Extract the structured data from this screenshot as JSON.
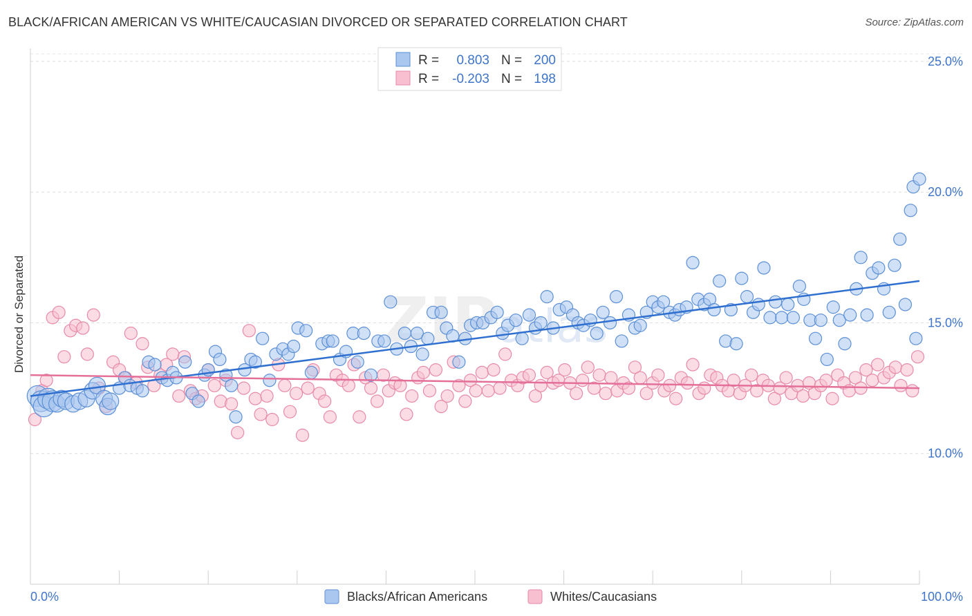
{
  "title": "BLACK/AFRICAN AMERICAN VS WHITE/CAUCASIAN DIVORCED OR SEPARATED CORRELATION CHART",
  "source": "Source: ZipAtlas.com",
  "watermark": {
    "part1": "ZIP",
    "part2": "atlas"
  },
  "colors": {
    "blue_fill": "#a9c7ef",
    "blue_stroke": "#5b8fd6",
    "blue_line": "#2f6fcf",
    "pink_fill": "#f7bfd0",
    "pink_stroke": "#e78aa8",
    "pink_line": "#e4709a",
    "tick_blue": "#3e74c9",
    "grid": "#dcdcdc"
  },
  "legend": {
    "rows": [
      {
        "r_label": "R =",
        "r_value": "0.803",
        "n_label": "N =",
        "n_value": "200"
      },
      {
        "r_label": "R =",
        "r_value": "-0.203",
        "n_label": "N =",
        "n_value": "198"
      }
    ]
  },
  "chart_data": {
    "type": "scatter",
    "title": "BLACK/AFRICAN AMERICAN VS WHITE/CAUCASIAN DIVORCED OR SEPARATED CORRELATION CHART",
    "xlabel": "",
    "ylabel": "Divorced or Separated",
    "xlim": [
      0,
      100
    ],
    "ylim": [
      5,
      25.5
    ],
    "x_tick_labels": [
      "0.0%",
      "100.0%"
    ],
    "y_ticks": [
      10,
      15,
      20,
      25
    ],
    "y_tick_labels": [
      "10.0%",
      "15.0%",
      "20.0%",
      "25.0%"
    ],
    "grid": true,
    "legend_position": "top-center",
    "series": [
      {
        "name": "Blacks/African Americans",
        "r": 0.803,
        "n": 200,
        "trend": {
          "x": [
            0,
            100
          ],
          "y": [
            12.2,
            16.6
          ]
        },
        "points": [
          [
            0.8,
            12.2
          ],
          [
            1.2,
            12.0
          ],
          [
            1.5,
            11.8
          ],
          [
            2,
            12.1
          ],
          [
            2.5,
            12.0
          ],
          [
            3,
            11.9
          ],
          [
            3.5,
            12.1
          ],
          [
            4,
            12.0
          ],
          [
            4.8,
            11.9
          ],
          [
            5.5,
            12.0
          ],
          [
            6.3,
            12.1
          ],
          [
            7,
            12.4
          ],
          [
            7.5,
            12.6
          ],
          [
            8.3,
            12.1
          ],
          [
            8.7,
            11.8
          ],
          [
            9,
            12.0
          ],
          [
            10,
            12.5
          ],
          [
            10.6,
            12.9
          ],
          [
            11.2,
            12.6
          ],
          [
            12,
            12.5
          ],
          [
            12.6,
            12.4
          ],
          [
            13.3,
            13.5
          ],
          [
            14,
            13.4
          ],
          [
            14.8,
            12.9
          ],
          [
            15.4,
            12.8
          ],
          [
            16,
            13.1
          ],
          [
            16.4,
            12.9
          ],
          [
            17.4,
            13.5
          ],
          [
            18.2,
            12.3
          ],
          [
            18.9,
            12.0
          ],
          [
            19.6,
            13.0
          ],
          [
            20,
            13.2
          ],
          [
            20.8,
            13.9
          ],
          [
            21.3,
            13.6
          ],
          [
            22,
            13.0
          ],
          [
            22.6,
            12.6
          ],
          [
            23.1,
            11.4
          ],
          [
            24.1,
            13.2
          ],
          [
            24.8,
            13.6
          ],
          [
            25.3,
            13.5
          ],
          [
            26.1,
            14.4
          ],
          [
            26.9,
            12.8
          ],
          [
            27.6,
            13.8
          ],
          [
            28.4,
            14.0
          ],
          [
            29,
            13.8
          ],
          [
            29.6,
            14.1
          ],
          [
            30.1,
            14.8
          ],
          [
            31,
            14.7
          ],
          [
            31.6,
            13.1
          ],
          [
            32.8,
            14.2
          ],
          [
            33.5,
            14.3
          ],
          [
            34,
            14.3
          ],
          [
            34.8,
            13.6
          ],
          [
            35.5,
            13.9
          ],
          [
            36.3,
            14.6
          ],
          [
            36.8,
            13.5
          ],
          [
            37.5,
            14.6
          ],
          [
            38.3,
            13.0
          ],
          [
            39.1,
            14.3
          ],
          [
            39.8,
            14.3
          ],
          [
            40.5,
            15.8
          ],
          [
            41.2,
            14.0
          ],
          [
            42.1,
            14.6
          ],
          [
            42.8,
            14.1
          ],
          [
            43.5,
            14.6
          ],
          [
            44.1,
            13.8
          ],
          [
            44.7,
            14.4
          ],
          [
            45.3,
            15.4
          ],
          [
            46.2,
            15.4
          ],
          [
            46.8,
            14.8
          ],
          [
            47.5,
            14.5
          ],
          [
            48.2,
            13.5
          ],
          [
            48.9,
            14.4
          ],
          [
            49.5,
            14.9
          ],
          [
            50.2,
            15.0
          ],
          [
            50.9,
            15.0
          ],
          [
            51.8,
            15.2
          ],
          [
            52.5,
            15.4
          ],
          [
            53.1,
            14.6
          ],
          [
            53.7,
            14.9
          ],
          [
            54.6,
            15.1
          ],
          [
            55.3,
            14.4
          ],
          [
            56.1,
            15.3
          ],
          [
            56.8,
            14.8
          ],
          [
            57.4,
            15.0
          ],
          [
            58.1,
            16.0
          ],
          [
            58.8,
            14.8
          ],
          [
            59.5,
            15.5
          ],
          [
            60.3,
            15.6
          ],
          [
            61,
            15.3
          ],
          [
            61.6,
            15.0
          ],
          [
            62.2,
            14.9
          ],
          [
            63,
            15.1
          ],
          [
            63.7,
            14.6
          ],
          [
            64.4,
            15.4
          ],
          [
            65.2,
            15.0
          ],
          [
            65.9,
            16.0
          ],
          [
            66.5,
            14.3
          ],
          [
            67.3,
            15.3
          ],
          [
            68,
            14.8
          ],
          [
            68.6,
            14.9
          ],
          [
            69.3,
            15.4
          ],
          [
            70,
            15.8
          ],
          [
            70.6,
            15.6
          ],
          [
            71.2,
            15.8
          ],
          [
            71.9,
            15.4
          ],
          [
            72.5,
            15.3
          ],
          [
            73,
            15.5
          ],
          [
            73.8,
            15.6
          ],
          [
            74.5,
            17.3
          ],
          [
            75.1,
            15.9
          ],
          [
            75.8,
            15.7
          ],
          [
            76.4,
            15.9
          ],
          [
            76.9,
            15.5
          ],
          [
            77.5,
            16.6
          ],
          [
            78.2,
            14.3
          ],
          [
            78.8,
            15.5
          ],
          [
            79.4,
            14.2
          ],
          [
            80,
            16.7
          ],
          [
            80.6,
            16.0
          ],
          [
            81.3,
            15.4
          ],
          [
            81.9,
            15.7
          ],
          [
            82.5,
            17.1
          ],
          [
            83.2,
            15.2
          ],
          [
            83.8,
            15.8
          ],
          [
            84.5,
            15.2
          ],
          [
            85.2,
            15.7
          ],
          [
            85.8,
            15.2
          ],
          [
            86.5,
            16.4
          ],
          [
            87,
            15.9
          ],
          [
            87.7,
            15.1
          ],
          [
            88.3,
            14.4
          ],
          [
            88.9,
            15.1
          ],
          [
            89.6,
            13.6
          ],
          [
            90.3,
            15.6
          ],
          [
            91,
            15.1
          ],
          [
            91.6,
            14.2
          ],
          [
            92.2,
            15.3
          ],
          [
            92.9,
            16.3
          ],
          [
            93.4,
            17.5
          ],
          [
            94.1,
            15.3
          ],
          [
            94.7,
            16.9
          ],
          [
            95.4,
            17.1
          ],
          [
            96,
            16.3
          ],
          [
            96.6,
            15.4
          ],
          [
            97.2,
            17.2
          ],
          [
            97.8,
            18.2
          ],
          [
            98.4,
            15.7
          ],
          [
            99,
            19.3
          ],
          [
            99.3,
            20.2
          ],
          [
            99.6,
            14.4
          ],
          [
            100,
            20.5
          ]
        ]
      },
      {
        "name": "Whites/Caucasians",
        "r": -0.203,
        "n": 198,
        "trend": {
          "x": [
            0,
            100
          ],
          "y": [
            13.0,
            12.5
          ]
        },
        "points": [
          [
            0.5,
            11.3
          ],
          [
            1.3,
            12.4
          ],
          [
            1.8,
            12.8
          ],
          [
            2.5,
            15.2
          ],
          [
            3.2,
            15.4
          ],
          [
            3.8,
            13.7
          ],
          [
            4.5,
            14.7
          ],
          [
            5.1,
            14.9
          ],
          [
            5.9,
            14.8
          ],
          [
            6.4,
            13.8
          ],
          [
            7.1,
            15.3
          ],
          [
            7.7,
            12.5
          ],
          [
            8.5,
            11.8
          ],
          [
            9.3,
            13.5
          ],
          [
            10,
            13.2
          ],
          [
            10.7,
            12.9
          ],
          [
            11.3,
            14.6
          ],
          [
            11.9,
            12.7
          ],
          [
            12.6,
            14.2
          ],
          [
            13.2,
            13.3
          ],
          [
            13.9,
            12.6
          ],
          [
            14.6,
            13.0
          ],
          [
            15.3,
            13.4
          ],
          [
            16,
            13.8
          ],
          [
            16.7,
            12.2
          ],
          [
            17.3,
            13.7
          ],
          [
            18,
            12.4
          ],
          [
            18.6,
            12.1
          ],
          [
            19.3,
            12.2
          ],
          [
            20,
            13.2
          ],
          [
            20.7,
            12.6
          ],
          [
            21.4,
            12.0
          ],
          [
            22,
            12.8
          ],
          [
            22.6,
            11.9
          ],
          [
            23.3,
            10.8
          ],
          [
            24,
            12.5
          ],
          [
            24.6,
            14.7
          ],
          [
            25.3,
            12.1
          ],
          [
            25.9,
            11.5
          ],
          [
            26.6,
            12.2
          ],
          [
            27.2,
            11.3
          ],
          [
            27.9,
            13.4
          ],
          [
            28.6,
            12.6
          ],
          [
            29.2,
            11.6
          ],
          [
            29.9,
            12.3
          ],
          [
            30.6,
            10.7
          ],
          [
            31.2,
            12.5
          ],
          [
            31.8,
            13.2
          ],
          [
            32.5,
            12.3
          ],
          [
            33.1,
            12.0
          ],
          [
            33.7,
            11.4
          ],
          [
            34.4,
            13.0
          ],
          [
            35.1,
            12.8
          ],
          [
            35.8,
            12.6
          ],
          [
            36.4,
            13.4
          ],
          [
            37,
            11.4
          ],
          [
            37.7,
            12.9
          ],
          [
            38.3,
            12.5
          ],
          [
            39,
            12.0
          ],
          [
            39.7,
            13.0
          ],
          [
            40.3,
            12.4
          ],
          [
            41,
            12.7
          ],
          [
            41.6,
            12.6
          ],
          [
            42.3,
            11.5
          ],
          [
            42.9,
            12.2
          ],
          [
            43.6,
            12.9
          ],
          [
            44.2,
            13.1
          ],
          [
            44.9,
            12.4
          ],
          [
            45.6,
            13.2
          ],
          [
            46.2,
            11.8
          ],
          [
            46.9,
            12.2
          ],
          [
            47.6,
            13.5
          ],
          [
            48.2,
            12.6
          ],
          [
            48.9,
            12.0
          ],
          [
            49.5,
            12.8
          ],
          [
            50.1,
            12.4
          ],
          [
            50.8,
            13.1
          ],
          [
            51.5,
            12.4
          ],
          [
            52.1,
            13.2
          ],
          [
            52.8,
            12.5
          ],
          [
            53.4,
            13.8
          ],
          [
            54.1,
            12.8
          ],
          [
            54.8,
            12.6
          ],
          [
            55.4,
            12.9
          ],
          [
            56.1,
            13.0
          ],
          [
            56.8,
            12.2
          ],
          [
            57.4,
            12.6
          ],
          [
            58.1,
            13.1
          ],
          [
            58.8,
            12.7
          ],
          [
            59.4,
            12.8
          ],
          [
            60.1,
            13.2
          ],
          [
            60.7,
            12.7
          ],
          [
            61.4,
            12.3
          ],
          [
            62.1,
            12.8
          ],
          [
            62.7,
            13.3
          ],
          [
            63.4,
            12.5
          ],
          [
            64,
            13.0
          ],
          [
            64.7,
            12.3
          ],
          [
            65.3,
            12.9
          ],
          [
            66,
            12.4
          ],
          [
            66.7,
            12.7
          ],
          [
            67.3,
            12.5
          ],
          [
            68,
            13.3
          ],
          [
            68.6,
            12.9
          ],
          [
            69.3,
            12.3
          ],
          [
            70,
            12.7
          ],
          [
            70.6,
            13.0
          ],
          [
            71.3,
            12.4
          ],
          [
            71.9,
            12.6
          ],
          [
            72.6,
            12.1
          ],
          [
            73.2,
            12.9
          ],
          [
            73.9,
            12.7
          ],
          [
            74.5,
            13.4
          ],
          [
            75.2,
            12.3
          ],
          [
            75.8,
            12.5
          ],
          [
            76.5,
            13.0
          ],
          [
            77.2,
            12.9
          ],
          [
            77.8,
            12.6
          ],
          [
            78.5,
            12.4
          ],
          [
            79.1,
            12.8
          ],
          [
            79.8,
            12.3
          ],
          [
            80.4,
            12.6
          ],
          [
            81.1,
            13.0
          ],
          [
            81.7,
            12.4
          ],
          [
            82.4,
            12.8
          ],
          [
            83,
            12.6
          ],
          [
            83.7,
            12.1
          ],
          [
            84.3,
            12.5
          ],
          [
            85,
            12.9
          ],
          [
            85.6,
            12.3
          ],
          [
            86.3,
            12.6
          ],
          [
            86.9,
            12.2
          ],
          [
            87.6,
            12.7
          ],
          [
            88.2,
            12.3
          ],
          [
            88.9,
            12.6
          ],
          [
            89.5,
            12.8
          ],
          [
            90.2,
            12.1
          ],
          [
            90.8,
            13.0
          ],
          [
            91.5,
            12.7
          ],
          [
            92.1,
            12.4
          ],
          [
            92.8,
            12.9
          ],
          [
            93.4,
            12.5
          ],
          [
            94,
            13.2
          ],
          [
            94.7,
            12.8
          ],
          [
            95.3,
            13.4
          ],
          [
            96,
            12.9
          ],
          [
            96.6,
            13.1
          ],
          [
            97.3,
            13.3
          ],
          [
            97.9,
            12.6
          ],
          [
            98.6,
            13.2
          ],
          [
            99.2,
            12.4
          ],
          [
            99.8,
            13.7
          ]
        ]
      }
    ]
  }
}
